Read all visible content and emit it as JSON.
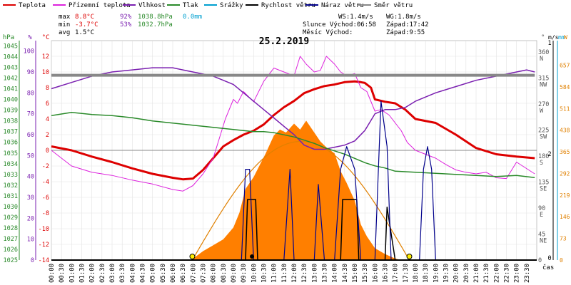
{
  "chart_data": {
    "type": "line",
    "title": "25.2.2019",
    "legend": [
      {
        "name": "Teplota",
        "color": "#dd0000"
      },
      {
        "name": "Přízemní teplota",
        "color": "#dd22dd"
      },
      {
        "name": "Vlhkost",
        "color": "#7a1fb0"
      },
      {
        "name": "Tlak",
        "color": "#2a8a2a"
      },
      {
        "name": "Srážky",
        "color": "#00a0d0"
      },
      {
        "name": "Rychlost větru",
        "color": "#000000"
      },
      {
        "name": "Náraz větru",
        "color": "#00008b"
      },
      {
        "name": "Směr větru",
        "color": "#888888"
      }
    ],
    "stats": {
      "max_label": "max",
      "min_label": "min",
      "avg_label": "avg",
      "max_temp": "8.8°C",
      "max_hum": "92%",
      "max_press": "1038.8hPa",
      "max_rain": "0.0mm",
      "min_temp": "-3.7°C",
      "min_hum": "53%",
      "min_press": "1032.7hPa",
      "avg_temp": "1.5°C"
    },
    "wind_info": {
      "ws": "WS:1.4m/s",
      "wg": "WG:1.8m/s",
      "sunrise": "Slunce Východ:06:58",
      "sunset": "Západ:17:42",
      "moonrise": "Měsíc  Východ:",
      "moonset": "Západ:9:55"
    },
    "left_axes": {
      "hpa_label": "hPa",
      "pct_label": "%",
      "c_label": "°C",
      "hpa": [
        "1045",
        "1044",
        "1043",
        "1042",
        "1041",
        "1040",
        "1039",
        "1038",
        "1037",
        "1036",
        "1035",
        "1034",
        "1033",
        "1032",
        "1031",
        "1030",
        "1029",
        "1028",
        "1027",
        "1026",
        "1025"
      ],
      "pct": [
        "100",
        "90",
        "80",
        "70",
        "60",
        "50",
        "40",
        "30",
        "20",
        "10",
        "0"
      ],
      "c": [
        "12",
        "10",
        "8",
        "6",
        "4",
        "2",
        "0",
        "-2",
        "-4",
        "-6",
        "-8",
        "-10",
        "-12",
        "-14"
      ]
    },
    "right_axes": {
      "deg_label": "°",
      "ms_label": "m/s",
      "mm_label": "mm",
      "w_label": "W",
      "deg": [
        {
          "v": "360",
          "d": "N"
        },
        {
          "v": "315",
          "d": "NW"
        },
        {
          "v": "270",
          "d": "W"
        },
        {
          "v": "225",
          "d": "SW"
        },
        {
          "v": "180",
          "d": "S"
        },
        {
          "v": "135",
          "d": "SE"
        },
        {
          "v": "90",
          "d": "E"
        },
        {
          "v": "45",
          "d": "NE"
        },
        {
          "v": "0",
          "d": ""
        }
      ],
      "ms": [
        "1",
        "2",
        "0"
      ],
      "w": [
        "657",
        "584",
        "511",
        "438",
        "365",
        "292",
        "219",
        "146",
        "73",
        "0"
      ]
    },
    "x_axis": {
      "label": "čas",
      "ticks": [
        "00:00",
        "00:30",
        "01:00",
        "01:30",
        "02:00",
        "02:30",
        "03:00",
        "03:30",
        "04:00",
        "04:30",
        "05:00",
        "05:30",
        "06:00",
        "06:30",
        "07:00",
        "07:30",
        "08:00",
        "08:30",
        "09:00",
        "09:30",
        "10:00",
        "10:30",
        "11:00",
        "11:30",
        "12:00",
        "12:30",
        "13:00",
        "13:30",
        "14:00",
        "14:30",
        "15:00",
        "15:30",
        "16:00",
        "16:30",
        "17:00",
        "17:30",
        "18:00",
        "18:30",
        "19:00",
        "19:30",
        "20:00",
        "20:30",
        "21:00",
        "21:30",
        "22:00",
        "22:30",
        "23:00",
        "23:30"
      ]
    },
    "series": [
      {
        "name": "Teplota",
        "unit": "°C",
        "color": "#dd0000",
        "x": [
          0,
          1,
          2,
          3,
          4,
          5,
          6,
          6.5,
          7,
          7.5,
          8,
          8.5,
          9,
          9.5,
          10,
          10.5,
          11,
          11.5,
          12,
          12.5,
          13,
          13.5,
          14,
          14.5,
          15,
          15.3,
          15.5,
          15.8,
          16,
          16.5,
          17,
          17.5,
          18,
          19,
          20,
          21,
          22,
          23,
          23.9
        ],
        "y": [
          0.5,
          0,
          -0.8,
          -1.5,
          -2.3,
          -3,
          -3.5,
          -3.7,
          -3.6,
          -2.5,
          -1,
          0.5,
          1.3,
          2,
          2.5,
          3.3,
          4.5,
          5.5,
          6.3,
          7.3,
          7.8,
          8.2,
          8.4,
          8.7,
          8.8,
          8.7,
          8.6,
          8,
          6.5,
          6.2,
          6,
          5.2,
          4,
          3.5,
          2,
          0.3,
          -0.5,
          -0.8,
          -1
        ]
      },
      {
        "name": "Přízemní teplota",
        "unit": "°C",
        "color": "#dd22dd",
        "x": [
          0,
          1,
          2,
          3,
          4,
          5,
          6,
          6.5,
          7,
          7.5,
          8,
          8.3,
          8.6,
          9,
          9.2,
          9.5,
          10,
          10.5,
          11,
          11.5,
          12,
          12.3,
          12.6,
          13,
          13.3,
          13.6,
          14,
          14.3,
          14.6,
          15,
          15.3,
          15.6,
          16,
          16.3,
          16.7,
          17,
          17.3,
          17.6,
          18,
          18.5,
          19,
          19.5,
          20,
          20.5,
          21,
          21.5,
          22,
          22.5,
          23,
          23.9
        ],
        "y": [
          0,
          -2,
          -2.8,
          -3.2,
          -3.8,
          -4.3,
          -5,
          -5.2,
          -4.5,
          -3,
          -1,
          1.5,
          4,
          6.5,
          6,
          7.5,
          6.2,
          8.8,
          10.5,
          10,
          9.5,
          12,
          11,
          10,
          10.2,
          12,
          11,
          10,
          9.5,
          9.8,
          8,
          7.5,
          5,
          5.2,
          4.5,
          3.5,
          2.5,
          1,
          0,
          -0.5,
          -1,
          -1.8,
          -2.5,
          -2.8,
          -3,
          -2.8,
          -3.5,
          -3.6,
          -1.5,
          -3
        ]
      },
      {
        "name": "Vlhkost",
        "unit": "%",
        "color": "#7a1fb0",
        "x": [
          0,
          1,
          2,
          3,
          4,
          5,
          6,
          6.5,
          7,
          7.5,
          8,
          8.5,
          9,
          9.5,
          10,
          10.5,
          11,
          11.5,
          12,
          12.5,
          13,
          13.5,
          14,
          14.5,
          15,
          15.5,
          16,
          16.5,
          17,
          17.5,
          18,
          19,
          20,
          21,
          22,
          23,
          23.5,
          23.9
        ],
        "y": [
          82,
          85,
          88,
          90,
          91,
          92,
          92,
          91,
          90,
          89,
          88,
          86,
          84,
          80,
          76,
          72,
          68,
          64,
          60,
          55,
          53,
          53,
          54,
          55,
          57,
          62,
          70,
          72,
          72,
          73,
          76,
          80,
          83,
          86,
          88,
          90,
          91,
          90
        ]
      },
      {
        "name": "Tlak",
        "unit": "hPa",
        "color": "#2a8a2a",
        "x": [
          0,
          1,
          2,
          3,
          4,
          5,
          6,
          7,
          8,
          9,
          10,
          10.5,
          11,
          11.5,
          12,
          12.5,
          13,
          13.5,
          14,
          14.5,
          15,
          15.5,
          16,
          16.5,
          17,
          18,
          19,
          20,
          21,
          22,
          23,
          23.9
        ],
        "y": [
          1038.5,
          1038.8,
          1038.6,
          1038.5,
          1038.3,
          1038,
          1037.8,
          1037.6,
          1037.4,
          1037.2,
          1037,
          1037,
          1036.9,
          1036.7,
          1036.5,
          1036.2,
          1035.9,
          1035.5,
          1035.2,
          1034.9,
          1034.5,
          1034.1,
          1033.8,
          1033.6,
          1033.3,
          1033.2,
          1033.1,
          1033,
          1032.9,
          1032.8,
          1032.9,
          1032.7
        ]
      },
      {
        "name": "Srážky",
        "unit": "mm",
        "color": "#00a0d0",
        "x": [
          0,
          23.9
        ],
        "y": [
          0,
          0
        ]
      },
      {
        "name": "Rychlost větru",
        "unit": "m/s",
        "color": "#000000",
        "x": [
          0,
          9.6,
          9.7,
          10.1,
          10.2,
          14.3,
          14.4,
          15.1,
          15.2,
          16.5,
          16.6,
          17,
          23.9
        ],
        "y": [
          0,
          0,
          0.8,
          0.8,
          0,
          0,
          0.8,
          0.8,
          0,
          0,
          0.7,
          0,
          0
        ]
      },
      {
        "name": "Náraz větru",
        "unit": "m/s",
        "color": "#00008b",
        "x": [
          0,
          9.4,
          9.6,
          9.8,
          10,
          10.2,
          11.5,
          11.8,
          12,
          12.3,
          13,
          13.2,
          13.5,
          14,
          14.3,
          14.6,
          15,
          15.3,
          15.6,
          16,
          16.3,
          16.6,
          16.8,
          17,
          17,
          18.2,
          18.4,
          18.6,
          18.8,
          19,
          23.9
        ],
        "y": [
          0,
          0,
          1.2,
          1.2,
          0,
          0,
          0,
          1.2,
          0,
          0,
          0,
          1,
          0,
          0,
          1.2,
          1.5,
          1.2,
          0,
          0,
          0,
          2.1,
          1.5,
          0,
          0,
          0,
          0,
          1.2,
          1.5,
          1.2,
          0,
          0
        ]
      },
      {
        "name": "Směr větru",
        "unit": "°",
        "color": "#888888",
        "x": [
          0,
          23.9
        ],
        "y": [
          320,
          320
        ]
      }
    ],
    "solar": {
      "name": "sluneční záření",
      "unit": "W",
      "color": "#ff7f00",
      "x": [
        6.9,
        7.5,
        8,
        8.5,
        9,
        9.3,
        9.6,
        10,
        10.3,
        10.6,
        11,
        11.3,
        11.6,
        12,
        12.3,
        12.6,
        13,
        13.3,
        13.6,
        14,
        14.3,
        14.6,
        15,
        15.3,
        15.6,
        16,
        16.5,
        17,
        17.3
      ],
      "y": [
        0,
        30,
        50,
        70,
        110,
        160,
        240,
        280,
        320,
        360,
        420,
        440,
        430,
        460,
        440,
        470,
        430,
        400,
        380,
        360,
        300,
        260,
        200,
        120,
        80,
        40,
        20,
        5,
        0
      ]
    },
    "clear_sky_curve": {
      "rise": 6.97,
      "set": 17.7,
      "max_w": 400
    },
    "markers": {
      "sunrise_time": 6.97,
      "sunset_time": 17.7,
      "moon_time": 9.92
    }
  }
}
